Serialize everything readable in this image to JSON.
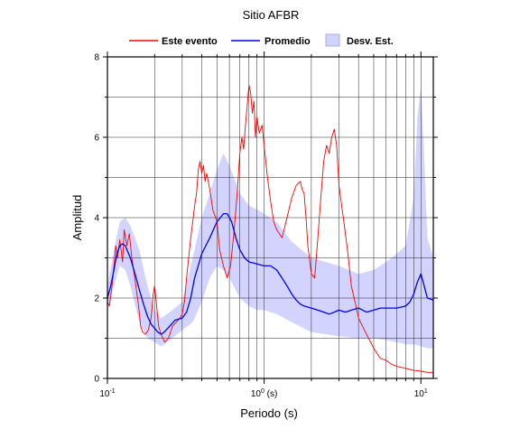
{
  "chart_data": {
    "type": "line",
    "title": "Sitio AFBR",
    "xlabel": "Periodo (s)",
    "ylabel": "Amplitud",
    "x_scale": "log",
    "xlim": [
      0.1,
      12
    ],
    "ylim": [
      0,
      8
    ],
    "grid": true,
    "legend_position": "top",
    "x_ticks": [
      {
        "value": 0.1,
        "base": "10",
        "exp": "-1"
      },
      {
        "value": 1,
        "base": "10",
        "exp": "0"
      },
      {
        "value": 10,
        "base": "10",
        "exp": "1"
      }
    ],
    "x_tick_suffix": " (s)",
    "y_ticks": [
      "0",
      "2",
      "4",
      "6",
      "8"
    ],
    "legend": [
      {
        "label": "Este evento",
        "kind": "line",
        "color": "#ff0000"
      },
      {
        "label": "Promedio",
        "kind": "line",
        "color": "#0000ee"
      },
      {
        "label": "Desv. Est.",
        "kind": "band",
        "color": "#d2d3ff"
      }
    ],
    "series": [
      {
        "name": "Este evento",
        "color": "#ff0000",
        "points": [
          [
            0.1,
            1.9
          ],
          [
            0.103,
            1.8
          ],
          [
            0.107,
            2.3
          ],
          [
            0.11,
            2.8
          ],
          [
            0.113,
            3.3
          ],
          [
            0.116,
            3.0
          ],
          [
            0.12,
            3.45
          ],
          [
            0.125,
            2.9
          ],
          [
            0.128,
            3.7
          ],
          [
            0.133,
            3.3
          ],
          [
            0.138,
            3.6
          ],
          [
            0.143,
            3.0
          ],
          [
            0.148,
            2.6
          ],
          [
            0.153,
            2.2
          ],
          [
            0.158,
            1.8
          ],
          [
            0.163,
            1.3
          ],
          [
            0.168,
            1.15
          ],
          [
            0.175,
            1.1
          ],
          [
            0.182,
            1.2
          ],
          [
            0.19,
            1.5
          ],
          [
            0.196,
            2.1
          ],
          [
            0.2,
            2.3
          ],
          [
            0.205,
            1.9
          ],
          [
            0.212,
            1.3
          ],
          [
            0.22,
            1.1
          ],
          [
            0.232,
            0.9
          ],
          [
            0.245,
            1.0
          ],
          [
            0.26,
            1.3
          ],
          [
            0.275,
            1.4
          ],
          [
            0.29,
            1.5
          ],
          [
            0.3,
            1.6
          ],
          [
            0.31,
            1.9
          ],
          [
            0.32,
            2.5
          ],
          [
            0.33,
            3.0
          ],
          [
            0.34,
            3.5
          ],
          [
            0.35,
            3.9
          ],
          [
            0.36,
            4.3
          ],
          [
            0.37,
            4.6
          ],
          [
            0.38,
            5.2
          ],
          [
            0.39,
            5.4
          ],
          [
            0.4,
            5.1
          ],
          [
            0.41,
            5.3
          ],
          [
            0.42,
            4.9
          ],
          [
            0.43,
            5.1
          ],
          [
            0.45,
            4.7
          ],
          [
            0.47,
            4.2
          ],
          [
            0.5,
            3.9
          ],
          [
            0.52,
            3.2
          ],
          [
            0.55,
            2.8
          ],
          [
            0.58,
            2.5
          ],
          [
            0.61,
            2.8
          ],
          [
            0.64,
            3.6
          ],
          [
            0.67,
            4.5
          ],
          [
            0.7,
            5.6
          ],
          [
            0.72,
            6.0
          ],
          [
            0.74,
            5.7
          ],
          [
            0.76,
            6.3
          ],
          [
            0.78,
            6.8
          ],
          [
            0.8,
            7.3
          ],
          [
            0.82,
            7.1
          ],
          [
            0.84,
            6.6
          ],
          [
            0.86,
            6.9
          ],
          [
            0.88,
            6.0
          ],
          [
            0.9,
            6.5
          ],
          [
            0.93,
            6.1
          ],
          [
            0.97,
            6.3
          ],
          [
            1.0,
            5.8
          ],
          [
            1.05,
            5.0
          ],
          [
            1.1,
            4.4
          ],
          [
            1.15,
            3.9
          ],
          [
            1.2,
            3.7
          ],
          [
            1.3,
            3.5
          ],
          [
            1.4,
            4.0
          ],
          [
            1.5,
            4.5
          ],
          [
            1.6,
            4.8
          ],
          [
            1.7,
            4.9
          ],
          [
            1.75,
            4.7
          ],
          [
            1.8,
            4.6
          ],
          [
            1.85,
            4.0
          ],
          [
            1.9,
            3.3
          ],
          [
            2.0,
            2.6
          ],
          [
            2.1,
            2.5
          ],
          [
            2.2,
            3.5
          ],
          [
            2.3,
            4.5
          ],
          [
            2.4,
            5.4
          ],
          [
            2.5,
            5.8
          ],
          [
            2.6,
            5.6
          ],
          [
            2.7,
            6.0
          ],
          [
            2.8,
            6.2
          ],
          [
            2.9,
            5.8
          ],
          [
            3.0,
            4.8
          ],
          [
            3.2,
            4.0
          ],
          [
            3.4,
            3.2
          ],
          [
            3.6,
            2.3
          ],
          [
            3.8,
            1.9
          ],
          [
            4.0,
            1.5
          ],
          [
            4.5,
            1.1
          ],
          [
            5.0,
            0.75
          ],
          [
            5.5,
            0.5
          ],
          [
            6.0,
            0.45
          ],
          [
            6.5,
            0.35
          ],
          [
            7.0,
            0.3
          ],
          [
            8.0,
            0.25
          ],
          [
            9.0,
            0.2
          ],
          [
            10.0,
            0.18
          ],
          [
            11.0,
            0.15
          ],
          [
            12.0,
            0.15
          ]
        ]
      },
      {
        "name": "Promedio",
        "color": "#0000ee",
        "points": [
          [
            0.1,
            2.0
          ],
          [
            0.105,
            2.3
          ],
          [
            0.11,
            2.7
          ],
          [
            0.115,
            3.1
          ],
          [
            0.12,
            3.3
          ],
          [
            0.125,
            3.35
          ],
          [
            0.13,
            3.3
          ],
          [
            0.14,
            3.0
          ],
          [
            0.15,
            2.6
          ],
          [
            0.16,
            2.2
          ],
          [
            0.17,
            1.85
          ],
          [
            0.18,
            1.55
          ],
          [
            0.19,
            1.35
          ],
          [
            0.2,
            1.25
          ],
          [
            0.21,
            1.15
          ],
          [
            0.22,
            1.1
          ],
          [
            0.23,
            1.15
          ],
          [
            0.25,
            1.3
          ],
          [
            0.27,
            1.45
          ],
          [
            0.3,
            1.5
          ],
          [
            0.32,
            1.65
          ],
          [
            0.34,
            2.0
          ],
          [
            0.36,
            2.5
          ],
          [
            0.4,
            3.1
          ],
          [
            0.45,
            3.5
          ],
          [
            0.5,
            3.9
          ],
          [
            0.55,
            4.1
          ],
          [
            0.58,
            4.1
          ],
          [
            0.62,
            3.9
          ],
          [
            0.66,
            3.5
          ],
          [
            0.7,
            3.2
          ],
          [
            0.75,
            3.0
          ],
          [
            0.8,
            2.9
          ],
          [
            0.9,
            2.85
          ],
          [
            1.0,
            2.8
          ],
          [
            1.1,
            2.8
          ],
          [
            1.2,
            2.7
          ],
          [
            1.3,
            2.5
          ],
          [
            1.4,
            2.3
          ],
          [
            1.5,
            2.1
          ],
          [
            1.6,
            1.95
          ],
          [
            1.7,
            1.85
          ],
          [
            1.8,
            1.8
          ],
          [
            2.0,
            1.75
          ],
          [
            2.2,
            1.7
          ],
          [
            2.4,
            1.65
          ],
          [
            2.6,
            1.6
          ],
          [
            2.8,
            1.65
          ],
          [
            3.0,
            1.7
          ],
          [
            3.3,
            1.65
          ],
          [
            3.6,
            1.7
          ],
          [
            4.0,
            1.75
          ],
          [
            4.5,
            1.65
          ],
          [
            5.0,
            1.7
          ],
          [
            5.5,
            1.75
          ],
          [
            6.0,
            1.75
          ],
          [
            7.0,
            1.75
          ],
          [
            8.0,
            1.8
          ],
          [
            8.5,
            1.9
          ],
          [
            9.0,
            2.1
          ],
          [
            9.5,
            2.4
          ],
          [
            10.0,
            2.6
          ],
          [
            10.5,
            2.3
          ],
          [
            11.0,
            2.0
          ],
          [
            12.0,
            1.95
          ]
        ]
      }
    ],
    "band": {
      "name": "Desv. Est.",
      "color": "#d2d3ff",
      "upper": [
        [
          0.1,
          2.3
        ],
        [
          0.11,
          3.2
        ],
        [
          0.12,
          3.9
        ],
        [
          0.13,
          4.0
        ],
        [
          0.14,
          3.8
        ],
        [
          0.16,
          3.2
        ],
        [
          0.18,
          2.3
        ],
        [
          0.2,
          1.7
        ],
        [
          0.22,
          1.5
        ],
        [
          0.25,
          1.65
        ],
        [
          0.3,
          1.9
        ],
        [
          0.35,
          3.0
        ],
        [
          0.4,
          4.0
        ],
        [
          0.45,
          4.6
        ],
        [
          0.5,
          5.2
        ],
        [
          0.55,
          5.6
        ],
        [
          0.6,
          5.3
        ],
        [
          0.7,
          4.6
        ],
        [
          0.8,
          4.3
        ],
        [
          0.9,
          4.2
        ],
        [
          1.0,
          4.1
        ],
        [
          1.2,
          3.9
        ],
        [
          1.5,
          3.4
        ],
        [
          2.0,
          3.0
        ],
        [
          3.0,
          2.8
        ],
        [
          4.0,
          2.6
        ],
        [
          5.0,
          2.7
        ],
        [
          6.0,
          2.9
        ],
        [
          7.0,
          3.1
        ],
        [
          8.0,
          3.3
        ],
        [
          9.0,
          4.5
        ],
        [
          9.5,
          6.5
        ],
        [
          10.0,
          7.3
        ],
        [
          10.5,
          5.5
        ],
        [
          11.0,
          3.5
        ],
        [
          12.0,
          3.0
        ]
      ],
      "lower": [
        [
          0.1,
          1.7
        ],
        [
          0.11,
          2.3
        ],
        [
          0.12,
          2.8
        ],
        [
          0.13,
          2.7
        ],
        [
          0.14,
          2.3
        ],
        [
          0.16,
          1.4
        ],
        [
          0.18,
          1.0
        ],
        [
          0.2,
          0.9
        ],
        [
          0.22,
          0.8
        ],
        [
          0.25,
          0.95
        ],
        [
          0.3,
          1.2
        ],
        [
          0.35,
          1.4
        ],
        [
          0.4,
          1.9
        ],
        [
          0.45,
          2.5
        ],
        [
          0.5,
          2.8
        ],
        [
          0.55,
          2.7
        ],
        [
          0.6,
          2.5
        ],
        [
          0.7,
          2.0
        ],
        [
          0.8,
          1.8
        ],
        [
          0.9,
          1.7
        ],
        [
          1.0,
          1.7
        ],
        [
          1.2,
          1.6
        ],
        [
          1.5,
          1.4
        ],
        [
          2.0,
          1.15
        ],
        [
          3.0,
          1.05
        ],
        [
          4.0,
          1.0
        ],
        [
          5.0,
          1.0
        ],
        [
          6.0,
          0.95
        ],
        [
          7.0,
          0.9
        ],
        [
          8.0,
          0.85
        ],
        [
          9.0,
          0.85
        ],
        [
          10.0,
          0.8
        ],
        [
          11.0,
          0.75
        ],
        [
          12.0,
          0.75
        ]
      ]
    }
  }
}
